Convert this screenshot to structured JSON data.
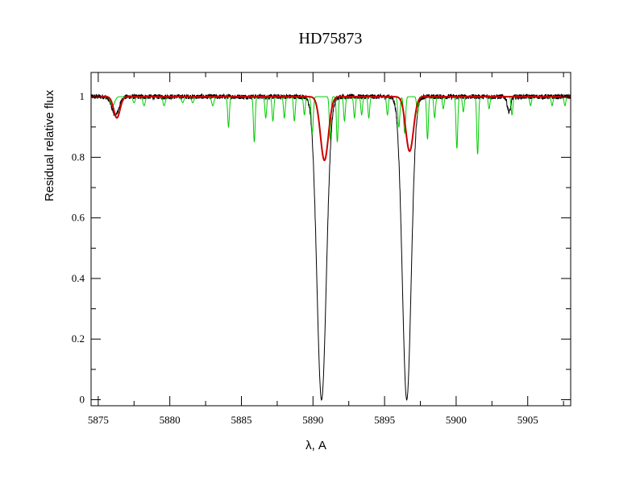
{
  "chart_data": {
    "type": "line",
    "title": "HD75873",
    "xlabel": "λ, A",
    "ylabel": "Residual relative flux",
    "xlim": [
      5874.5,
      5908
    ],
    "ylim": [
      -0.02,
      1.08
    ],
    "x_ticks": [
      5875,
      5880,
      5885,
      5890,
      5895,
      5900,
      5905
    ],
    "y_ticks": [
      0,
      0.2,
      0.4,
      0.6,
      0.8,
      1
    ],
    "x_minor_step": 2.5,
    "y_minor_step": 0.1,
    "grid": false,
    "series": [
      {
        "color": "#000000",
        "continuum": 1.0,
        "noise": 0.008,
        "absorption_lines": [
          {
            "center": 5876.2,
            "depth": 0.06,
            "width": 0.25
          },
          {
            "center": 5890.6,
            "depth": 1.0,
            "width": 0.33
          },
          {
            "center": 5896.55,
            "depth": 1.0,
            "width": 0.31
          },
          {
            "center": 5903.7,
            "depth": 0.05,
            "width": 0.12
          }
        ]
      },
      {
        "color": "#00cc00",
        "continuum": 1.0,
        "noise": 0.0,
        "absorption_lines": [
          {
            "center": 5876.0,
            "depth": 0.03,
            "width": 0.15
          },
          {
            "center": 5877.5,
            "depth": 0.02,
            "width": 0.08
          },
          {
            "center": 5878.2,
            "depth": 0.03,
            "width": 0.08
          },
          {
            "center": 5879.6,
            "depth": 0.03,
            "width": 0.08
          },
          {
            "center": 5880.9,
            "depth": 0.02,
            "width": 0.08
          },
          {
            "center": 5881.6,
            "depth": 0.02,
            "width": 0.08
          },
          {
            "center": 5883.0,
            "depth": 0.03,
            "width": 0.08
          },
          {
            "center": 5884.1,
            "depth": 0.1,
            "width": 0.06
          },
          {
            "center": 5885.9,
            "depth": 0.15,
            "width": 0.06
          },
          {
            "center": 5886.7,
            "depth": 0.07,
            "width": 0.06
          },
          {
            "center": 5887.2,
            "depth": 0.08,
            "width": 0.06
          },
          {
            "center": 5888.0,
            "depth": 0.07,
            "width": 0.06
          },
          {
            "center": 5888.7,
            "depth": 0.08,
            "width": 0.06
          },
          {
            "center": 5889.4,
            "depth": 0.06,
            "width": 0.06
          },
          {
            "center": 5889.95,
            "depth": 0.12,
            "width": 0.07
          },
          {
            "center": 5891.2,
            "depth": 0.14,
            "width": 0.06
          },
          {
            "center": 5891.7,
            "depth": 0.15,
            "width": 0.06
          },
          {
            "center": 5892.2,
            "depth": 0.08,
            "width": 0.06
          },
          {
            "center": 5892.9,
            "depth": 0.07,
            "width": 0.06
          },
          {
            "center": 5893.4,
            "depth": 0.06,
            "width": 0.06
          },
          {
            "center": 5893.9,
            "depth": 0.07,
            "width": 0.06
          },
          {
            "center": 5895.2,
            "depth": 0.06,
            "width": 0.06
          },
          {
            "center": 5896.0,
            "depth": 0.1,
            "width": 0.07
          },
          {
            "center": 5896.4,
            "depth": 0.12,
            "width": 0.07
          },
          {
            "center": 5897.3,
            "depth": 0.06,
            "width": 0.06
          },
          {
            "center": 5898.0,
            "depth": 0.14,
            "width": 0.06
          },
          {
            "center": 5898.5,
            "depth": 0.07,
            "width": 0.06
          },
          {
            "center": 5899.1,
            "depth": 0.04,
            "width": 0.06
          },
          {
            "center": 5900.05,
            "depth": 0.17,
            "width": 0.06
          },
          {
            "center": 5900.5,
            "depth": 0.05,
            "width": 0.06
          },
          {
            "center": 5901.5,
            "depth": 0.19,
            "width": 0.06
          },
          {
            "center": 5902.3,
            "depth": 0.04,
            "width": 0.06
          },
          {
            "center": 5903.9,
            "depth": 0.06,
            "width": 0.06
          },
          {
            "center": 5905.2,
            "depth": 0.03,
            "width": 0.06
          },
          {
            "center": 5906.7,
            "depth": 0.03,
            "width": 0.06
          },
          {
            "center": 5907.6,
            "depth": 0.03,
            "width": 0.06
          }
        ]
      },
      {
        "color": "#cc0000",
        "continuum": 1.0,
        "noise": 0.0,
        "absorption_lines": [
          {
            "center": 5876.3,
            "depth": 0.07,
            "width": 0.22
          },
          {
            "center": 5890.8,
            "depth": 0.21,
            "width": 0.28
          },
          {
            "center": 5896.75,
            "depth": 0.18,
            "width": 0.27
          }
        ]
      }
    ]
  }
}
